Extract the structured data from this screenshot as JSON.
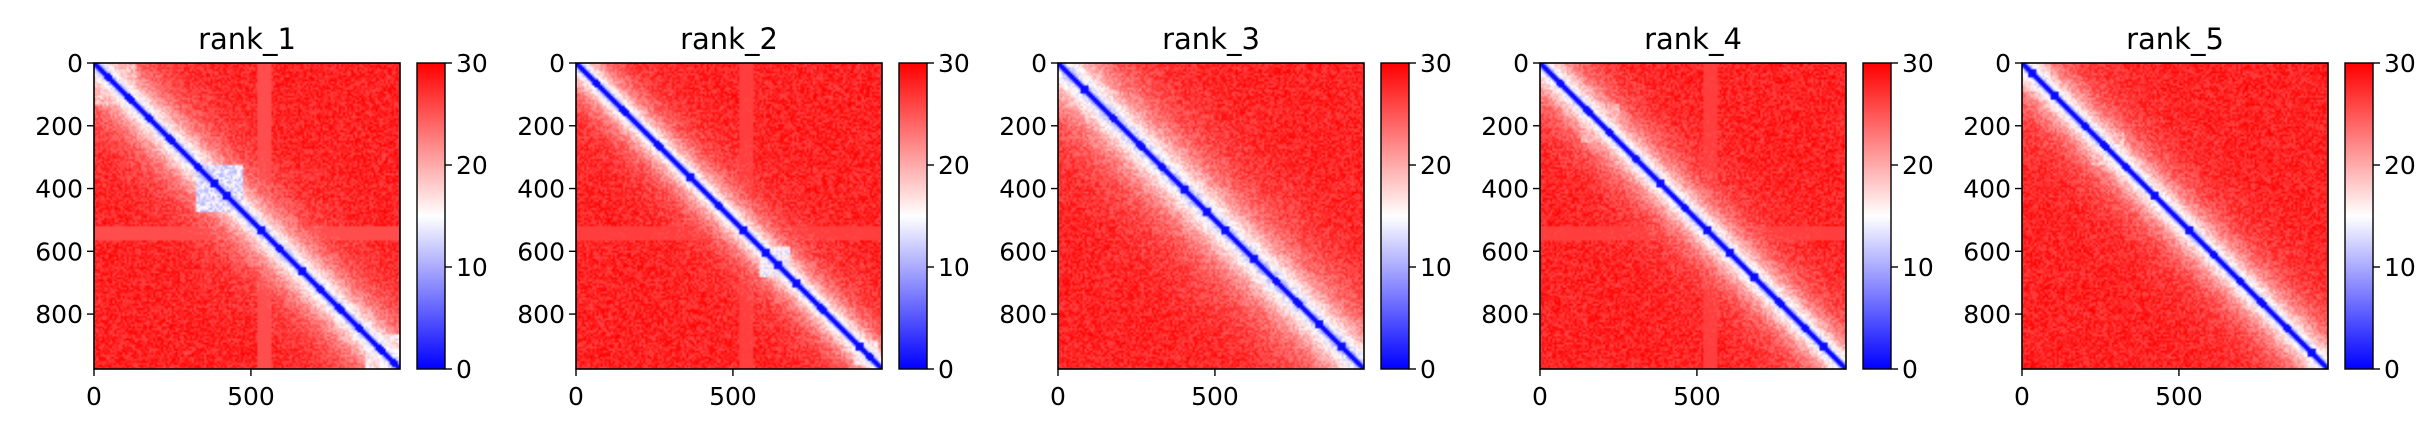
{
  "chart_data": [
    {
      "type": "heatmap",
      "title": "rank_1",
      "n": 975,
      "xticks": [
        0,
        500
      ],
      "yticks": [
        0,
        200,
        400,
        600,
        800
      ],
      "colorbar": {
        "ticks": [
          0,
          10,
          20,
          30
        ],
        "vmin": 0,
        "vmax": 30,
        "colors": [
          "#0000ff",
          "#ffffff",
          "#ff0000"
        ]
      },
      "features": {
        "diagonal_dots": [
          40,
          110,
          170,
          240,
          330,
          380,
          420,
          530,
          590,
          660,
          720,
          780,
          840,
          910,
          950
        ],
        "blocks": [
          {
            "start": 0,
            "end": 130,
            "level": 0.55
          },
          {
            "start": 320,
            "end": 470,
            "level": 0.35
          },
          {
            "start": 860,
            "end": 975,
            "level": 0.45
          }
        ],
        "bands": [
          {
            "start": 520,
            "end": 560,
            "level": 0.85
          }
        ],
        "spread": 90
      }
    },
    {
      "type": "heatmap",
      "title": "rank_2",
      "n": 975,
      "xticks": [
        0,
        500
      ],
      "yticks": [
        0,
        200,
        400,
        600,
        800
      ],
      "colorbar": {
        "ticks": [
          0,
          10,
          20,
          30
        ],
        "vmin": 0,
        "vmax": 30,
        "colors": [
          "#0000ff",
          "#ffffff",
          "#ff0000"
        ]
      },
      "features": {
        "diagonal_dots": [
          60,
          150,
          260,
          360,
          450,
          530,
          600,
          640,
          700,
          780,
          900,
          935
        ],
        "blocks": [
          {
            "start": 580,
            "end": 680,
            "level": 0.4
          },
          {
            "start": 880,
            "end": 960,
            "level": 0.45
          }
        ],
        "bands": [
          {
            "start": 520,
            "end": 560,
            "level": 0.88
          }
        ],
        "spread": 70
      }
    },
    {
      "type": "heatmap",
      "title": "rank_3",
      "n": 975,
      "xticks": [
        0,
        500
      ],
      "yticks": [
        0,
        200,
        400,
        600,
        800
      ],
      "colorbar": {
        "ticks": [
          0,
          10,
          20,
          30
        ],
        "vmin": 0,
        "vmax": 30,
        "colors": [
          "#0000ff",
          "#ffffff",
          "#ff0000"
        ]
      },
      "features": {
        "diagonal_dots": [
          80,
          170,
          260,
          330,
          400,
          470,
          530,
          620,
          690,
          760,
          830,
          900
        ],
        "blocks": [],
        "bands": [],
        "spread": 110
      }
    },
    {
      "type": "heatmap",
      "title": "rank_4",
      "n": 975,
      "xticks": [
        0,
        500
      ],
      "yticks": [
        0,
        200,
        400,
        600,
        800
      ],
      "colorbar": {
        "ticks": [
          0,
          10,
          20,
          30
        ],
        "vmin": 0,
        "vmax": 30,
        "colors": [
          "#0000ff",
          "#ffffff",
          "#ff0000"
        ]
      },
      "features": {
        "diagonal_dots": [
          60,
          150,
          220,
          300,
          380,
          460,
          530,
          600,
          680,
          760,
          840,
          900
        ],
        "blocks": [
          {
            "start": 130,
            "end": 250,
            "level": 0.55
          }
        ],
        "bands": [
          {
            "start": 520,
            "end": 560,
            "level": 0.88
          }
        ],
        "spread": 80
      }
    },
    {
      "type": "heatmap",
      "title": "rank_5",
      "n": 975,
      "xticks": [
        0,
        500
      ],
      "yticks": [
        0,
        200,
        400,
        600,
        800
      ],
      "colorbar": {
        "ticks": [
          0,
          10,
          20,
          30
        ],
        "vmin": 0,
        "vmax": 30,
        "colors": [
          "#0000ff",
          "#ffffff",
          "#ff0000"
        ]
      },
      "features": {
        "diagonal_dots": [
          30,
          100,
          200,
          260,
          330,
          420,
          530,
          610,
          690,
          760,
          840,
          920
        ],
        "blocks": [
          {
            "start": 0,
            "end": 90,
            "level": 0.55
          },
          {
            "start": 220,
            "end": 320,
            "level": 0.55
          }
        ],
        "bands": [],
        "spread": 80
      }
    }
  ]
}
